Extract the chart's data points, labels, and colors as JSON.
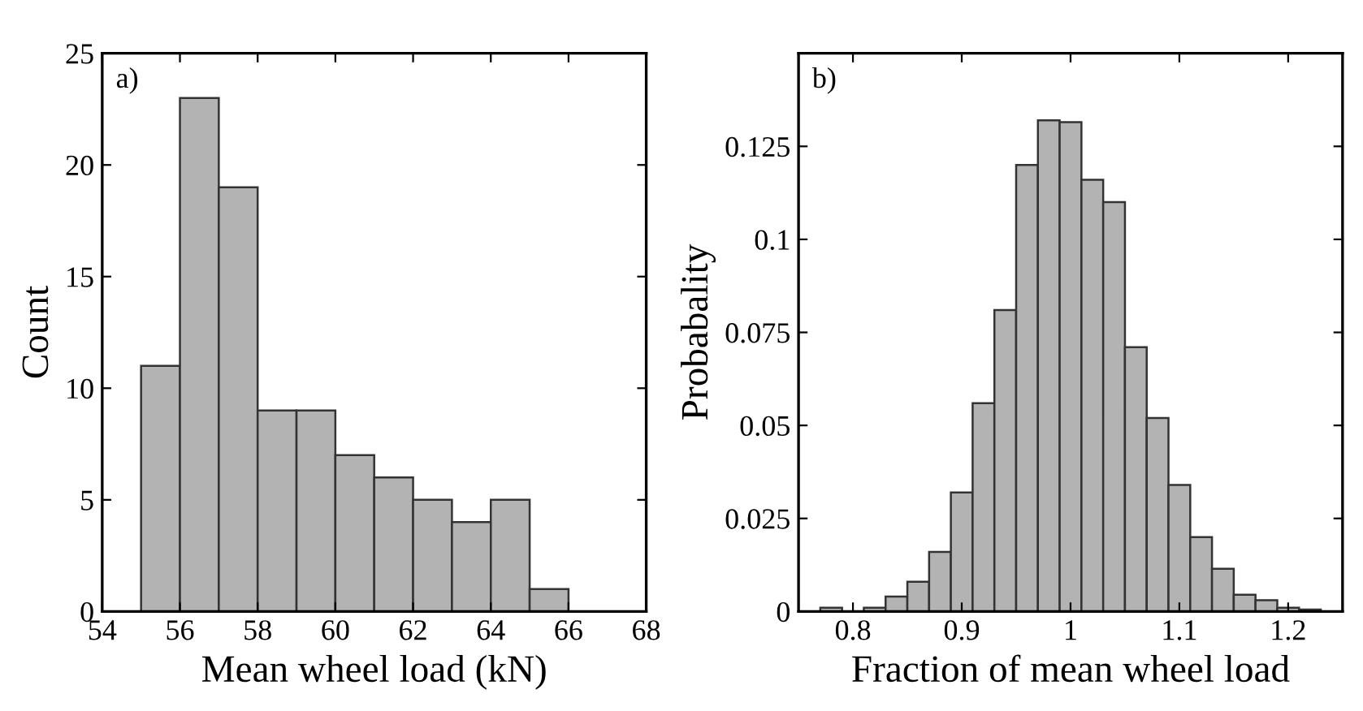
{
  "chart_data": [
    {
      "type": "histogram",
      "xlabel": "Mean wheel load (kN)",
      "ylabel": "Count",
      "annotations": [
        "a)"
      ],
      "color": "#b3b3b3",
      "bins": [
        55,
        56,
        57,
        58,
        59,
        60,
        61,
        62,
        63,
        64,
        65,
        66
      ],
      "values": [
        11,
        23,
        19,
        9,
        9,
        7,
        6,
        5,
        4,
        5,
        1
      ],
      "xlim": [
        54,
        68
      ],
      "xticks": [
        54,
        56,
        58,
        60,
        62,
        64,
        66,
        68
      ],
      "ylim": [
        0,
        25
      ],
      "yticks": [
        0,
        5,
        10,
        15,
        20,
        25
      ],
      "grid": false,
      "legend": false
    },
    {
      "type": "histogram",
      "xlabel": "Fraction of mean wheel load",
      "ylabel": "Probabality",
      "annotations": [
        "b)"
      ],
      "color": "#b3b3b3",
      "bins": [
        0.77,
        0.79,
        0.81,
        0.83,
        0.85,
        0.87,
        0.89,
        0.91,
        0.93,
        0.95,
        0.97,
        0.99,
        1.01,
        1.03,
        1.05,
        1.07,
        1.09,
        1.11,
        1.13,
        1.15,
        1.17,
        1.19,
        1.21,
        1.23
      ],
      "values": [
        0.001,
        null,
        0.001,
        0.004,
        0.008,
        0.016,
        0.032,
        0.056,
        0.081,
        0.12,
        0.132,
        0.1315,
        0.116,
        0.11,
        0.071,
        0.052,
        0.034,
        0.02,
        0.0115,
        0.0045,
        0.003,
        0.001,
        0.0005
      ],
      "xlim": [
        0.75,
        1.25
      ],
      "xticks": [
        0.8,
        0.9,
        1,
        1.1,
        1.2
      ],
      "ylim": [
        0,
        0.15
      ],
      "yticks": [
        0,
        0.025,
        0.05,
        0.075,
        0.1,
        0.125,
        {
          "value": 0.15,
          "label": null
        }
      ],
      "grid": false,
      "legend": false
    }
  ]
}
